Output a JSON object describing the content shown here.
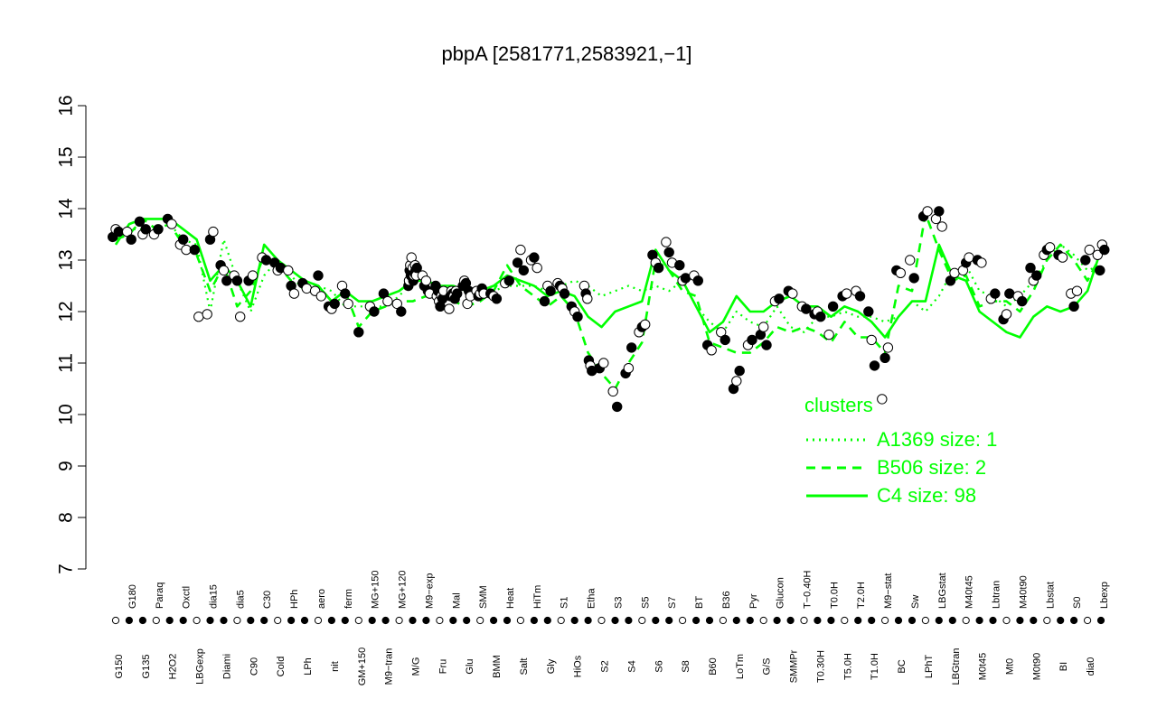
{
  "chart_data": {
    "type": "line",
    "title": "pbpA [2581771,2583921,−1]",
    "xlabel": "",
    "ylabel": "",
    "ylim": [
      7,
      16
    ],
    "y_ticks": [
      7,
      8,
      9,
      10,
      11,
      12,
      13,
      14,
      15,
      16
    ],
    "grid": false,
    "legend_position": "right",
    "legend_title": "clusters",
    "x_tick_labels": [
      "G150",
      "G180",
      "G135",
      "Paraq",
      "H2O2",
      "Oxctl",
      "LBGexp",
      "dia15",
      "Diami",
      "dia5",
      "C90",
      "C30",
      "Cold",
      "HPh",
      "LPh",
      "aero",
      "nit",
      "ferm",
      "GM+150",
      "MG+150",
      "M9−tran",
      "MG+120",
      "M/G",
      "M9−exp",
      "Fru",
      "Mal",
      "Glu",
      "SMM",
      "BMM",
      "Heat",
      "Salt",
      "HiTm",
      "Gly",
      "S1",
      "HiOs",
      "Etha",
      "S2",
      "S3",
      "S4",
      "S5",
      "S6",
      "S7",
      "S8",
      "BT",
      "B60",
      "B36",
      "LoTm",
      "Pyr",
      "G/S",
      "Glucon",
      "SMMPr",
      "T−0.40H",
      "T0.30H",
      "T0.0H",
      "T5.0H",
      "T2.0H",
      "T1.0H",
      "M9−stat",
      "BC",
      "Sw",
      "LPhT",
      "LBGstat",
      "LBGtran",
      "M40t45",
      "M0t45",
      "Lbtran",
      "Mt0",
      "M40t90",
      "M0t90",
      "Lbstat",
      "BI",
      "S0",
      "dia0",
      "Lbexp"
    ],
    "series": [
      {
        "name": "A1369 size: 1",
        "color": "#00ff00",
        "dash": "dotted",
        "values": [
          13.5,
          13.6,
          13.6,
          13.6,
          13.7,
          13.4,
          13.3,
          12.0,
          13.4,
          12.6,
          12.0,
          12.7,
          13.0,
          12.7,
          12.4,
          12.5,
          12.4,
          12.1,
          12.1,
          12.1,
          12.1,
          12.3,
          12.6,
          12.6,
          12.5,
          12.5,
          12.4,
          12.3,
          12.4,
          12.5,
          12.5,
          12.5,
          12.4,
          12.5,
          12.6,
          12.5,
          12.3,
          12.4,
          12.5,
          12.4,
          12.5,
          12.4,
          12.6,
          12.1,
          11.8,
          11.6,
          12.0,
          11.8,
          11.7,
          12.1,
          11.7,
          11.6,
          11.9,
          11.9,
          12.0,
          11.9,
          11.9,
          11.8,
          11.9,
          12.2,
          12.0,
          12.3,
          12.8,
          12.9,
          12.4,
          12.3,
          12.1,
          12.3,
          12.6,
          13.0,
          13.3,
          13.1,
          12.8,
          12.9
        ]
      },
      {
        "name": "B506 size: 2",
        "color": "#00ff00",
        "dash": "dashed",
        "values": [
          13.4,
          13.5,
          13.8,
          13.6,
          13.7,
          13.3,
          13.1,
          12.4,
          12.9,
          12.1,
          12.4,
          13.1,
          12.9,
          12.6,
          12.6,
          12.5,
          12.2,
          12.4,
          11.7,
          12.0,
          12.1,
          12.2,
          12.2,
          12.3,
          12.2,
          12.2,
          12.1,
          12.2,
          12.4,
          12.9,
          12.5,
          12.3,
          12.1,
          12.3,
          12.0,
          11.2,
          10.8,
          10.5,
          11.0,
          11.4,
          13.0,
          12.8,
          12.4,
          12.3,
          11.4,
          11.3,
          11.2,
          11.2,
          11.4,
          11.7,
          11.6,
          11.7,
          11.6,
          11.4,
          11.8,
          11.5,
          11.5,
          11.2,
          12.5,
          12.4,
          13.9,
          13.2,
          12.6,
          12.7,
          12.1,
          12.2,
          12.2,
          12.0,
          12.4,
          13.0,
          13.3,
          13.0,
          12.6,
          13.1
        ]
      },
      {
        "name": "C4 size: 98",
        "color": "#00ff00",
        "dash": "solid",
        "values": [
          13.3,
          13.7,
          13.8,
          13.8,
          13.8,
          13.6,
          13.4,
          12.6,
          12.9,
          12.6,
          12.1,
          13.3,
          13.0,
          12.8,
          12.6,
          12.5,
          12.2,
          12.4,
          12.2,
          12.2,
          12.3,
          12.4,
          12.6,
          12.6,
          12.5,
          12.5,
          12.4,
          12.4,
          12.5,
          12.7,
          12.6,
          12.5,
          12.3,
          12.4,
          12.3,
          11.9,
          11.7,
          12.0,
          12.1,
          12.2,
          13.2,
          12.8,
          12.6,
          12.1,
          11.6,
          11.8,
          12.3,
          12.0,
          12.0,
          12.2,
          12.3,
          12.1,
          12.1,
          11.9,
          12.1,
          12.0,
          11.8,
          11.5,
          11.9,
          12.2,
          12.2,
          13.3,
          12.7,
          12.6,
          12.0,
          11.8,
          11.6,
          11.5,
          11.9,
          12.1,
          12.0,
          12.1,
          12.4,
          13.2
        ]
      }
    ],
    "point_groups": [
      {
        "label": "G150",
        "values": [
          13.45,
          13.6,
          13.55
        ]
      },
      {
        "label": "G180",
        "values": [
          13.55,
          13.4
        ]
      },
      {
        "label": "G135",
        "values": [
          13.75,
          13.5,
          13.6
        ]
      },
      {
        "label": "Paraq",
        "values": [
          13.5,
          13.6
        ]
      },
      {
        "label": "H2O2",
        "values": [
          13.8,
          13.7
        ]
      },
      {
        "label": "Oxctl",
        "values": [
          13.3,
          13.4,
          13.2
        ]
      },
      {
        "label": "LBGexp",
        "values": [
          13.2,
          11.9
        ]
      },
      {
        "label": "dia15",
        "values": [
          11.95,
          13.4,
          13.55
        ]
      },
      {
        "label": "Diami",
        "values": [
          12.9,
          12.8,
          12.6
        ]
      },
      {
        "label": "dia5",
        "values": [
          12.7,
          12.6,
          11.9
        ]
      },
      {
        "label": "C90",
        "values": [
          12.6,
          12.7
        ]
      },
      {
        "label": "C30",
        "values": [
          13.05,
          13.0
        ]
      },
      {
        "label": "Cold",
        "values": [
          12.95,
          12.8,
          12.85
        ]
      },
      {
        "label": "HPh",
        "values": [
          12.8,
          12.5,
          12.35
        ]
      },
      {
        "label": "LPh",
        "values": [
          12.55,
          12.45
        ]
      },
      {
        "label": "aero",
        "values": [
          12.4,
          12.7,
          12.3
        ]
      },
      {
        "label": "nit",
        "values": [
          12.1,
          12.05,
          12.15
        ]
      },
      {
        "label": "ferm",
        "values": [
          12.5,
          12.35,
          12.15
        ]
      },
      {
        "label": "GM+150",
        "values": [
          11.6
        ]
      },
      {
        "label": "MG+150",
        "values": [
          12.1,
          12.0
        ]
      },
      {
        "label": "M9−tran",
        "values": [
          12.35,
          12.2
        ]
      },
      {
        "label": "MG+120",
        "values": [
          12.15,
          12.0
        ]
      },
      {
        "label": "M/G",
        "values": [
          12.5,
          12.6,
          12.8,
          12.9,
          12.7,
          13.05,
          12.8,
          12.85,
          12.6,
          12.7,
          12.75,
          12.9,
          12.8,
          12.7,
          12.85
        ]
      },
      {
        "label": "M9−exp",
        "values": [
          12.7,
          12.5,
          12.6,
          12.4,
          12.35
        ]
      },
      {
        "label": "Fru",
        "values": [
          12.5,
          12.3,
          12.4,
          12.2,
          12.1,
          12.3,
          12.25,
          12.4
        ]
      },
      {
        "label": "Mal",
        "values": [
          12.05,
          12.3,
          12.4,
          12.35,
          12.3,
          12.25,
          12.4,
          12.35
        ]
      },
      {
        "label": "Glu",
        "values": [
          12.5,
          12.6,
          12.55,
          12.15,
          12.4,
          12.3
        ]
      },
      {
        "label": "SMM",
        "values": [
          12.4,
          12.3,
          12.35,
          12.45,
          12.35
        ]
      },
      {
        "label": "BMM",
        "values": [
          12.35,
          12.3,
          12.25
        ]
      },
      {
        "label": "Heat",
        "values": [
          12.55,
          12.6
        ]
      },
      {
        "label": "Salt",
        "values": [
          12.95,
          13.2,
          12.8
        ]
      },
      {
        "label": "HiTm",
        "values": [
          13.0,
          13.05,
          12.85
        ]
      },
      {
        "label": "Gly",
        "values": [
          12.2,
          12.5,
          12.4
        ]
      },
      {
        "label": "S1",
        "values": [
          12.55,
          12.5,
          12.45,
          12.35
        ]
      },
      {
        "label": "HiOs",
        "values": [
          12.1,
          12.0,
          11.9
        ]
      },
      {
        "label": "Etha",
        "values": [
          12.5,
          12.35,
          12.25,
          11.05,
          10.95,
          10.85
        ]
      },
      {
        "label": "S2",
        "values": [
          10.9,
          11.0
        ]
      },
      {
        "label": "S3",
        "values": [
          10.45,
          10.15
        ]
      },
      {
        "label": "S4",
        "values": [
          10.8,
          10.9,
          11.3
        ]
      },
      {
        "label": "S5",
        "values": [
          11.6,
          11.7,
          11.75
        ]
      },
      {
        "label": "S6",
        "values": [
          13.1,
          12.95,
          12.85
        ]
      },
      {
        "label": "S7",
        "values": [
          13.35,
          13.15,
          12.95
        ]
      },
      {
        "label": "S8",
        "values": [
          12.9,
          12.6,
          12.65
        ]
      },
      {
        "label": "BT",
        "values": [
          12.7,
          12.6
        ]
      },
      {
        "label": "B60",
        "values": [
          11.35,
          11.25
        ]
      },
      {
        "label": "B36",
        "values": [
          11.6,
          11.45
        ]
      },
      {
        "label": "LoTm",
        "values": [
          10.5,
          10.65,
          10.85
        ]
      },
      {
        "label": "Pyr",
        "values": [
          11.35,
          11.45
        ]
      },
      {
        "label": "G/S",
        "values": [
          11.55,
          11.7,
          11.35
        ]
      },
      {
        "label": "Glucon",
        "values": [
          12.2,
          12.25
        ]
      },
      {
        "label": "SMMPr",
        "values": [
          12.4,
          12.35
        ]
      },
      {
        "label": "T−0.40H",
        "values": [
          12.1,
          12.05
        ]
      },
      {
        "label": "T0.30H",
        "values": [
          11.95,
          12.0,
          11.9
        ]
      },
      {
        "label": "T0.0H",
        "values": [
          11.55,
          12.1
        ]
      },
      {
        "label": "T5.0H",
        "values": [
          12.3,
          12.35
        ]
      },
      {
        "label": "T2.0H",
        "values": [
          12.4,
          12.3
        ]
      },
      {
        "label": "T1.0H",
        "values": [
          12.0,
          11.45,
          10.95
        ]
      },
      {
        "label": "M9−stat",
        "values": [
          10.3,
          11.1,
          11.3
        ]
      },
      {
        "label": "BC",
        "values": [
          12.8,
          12.75
        ]
      },
      {
        "label": "Sw",
        "values": [
          13.0,
          12.65
        ]
      },
      {
        "label": "LPhT",
        "values": [
          13.85,
          13.95
        ]
      },
      {
        "label": "LBGstat",
        "values": [
          13.8,
          13.95,
          13.65
        ]
      },
      {
        "label": "LBGtran",
        "values": [
          12.6,
          12.75
        ]
      },
      {
        "label": "M40t45",
        "values": [
          12.8,
          12.95,
          13.05
        ]
      },
      {
        "label": "M0t45",
        "values": [
          13.0,
          12.95
        ]
      },
      {
        "label": "Lbtran",
        "values": [
          12.25,
          12.35
        ]
      },
      {
        "label": "Mt0",
        "values": [
          11.85,
          11.95,
          12.35
        ]
      },
      {
        "label": "M40t90",
        "values": [
          12.3,
          12.2
        ]
      },
      {
        "label": "M0t90",
        "values": [
          12.85,
          12.6,
          12.7
        ]
      },
      {
        "label": "Lbstat",
        "values": [
          13.1,
          13.2,
          13.25
        ]
      },
      {
        "label": "BI",
        "values": [
          13.1,
          13.05
        ]
      },
      {
        "label": "S0",
        "values": [
          12.35,
          12.1,
          12.4
        ]
      },
      {
        "label": "dia0",
        "values": [
          13.0,
          13.2
        ]
      },
      {
        "label": "Lbexp",
        "values": [
          13.1,
          12.8,
          13.3,
          13.2
        ]
      }
    ]
  }
}
